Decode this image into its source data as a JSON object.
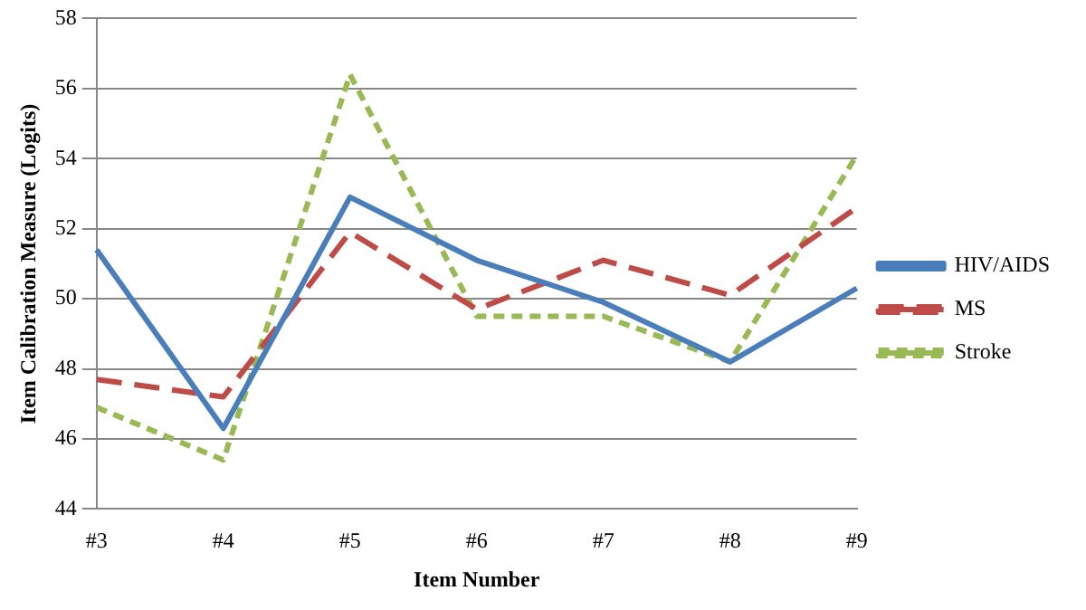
{
  "chart_data": {
    "type": "line",
    "xlabel": "Item Number",
    "ylabel": "Item Calibration Measure (Logits)",
    "categories": [
      "#3",
      "#4",
      "#5",
      "#6",
      "#7",
      "#8",
      "#9"
    ],
    "series": [
      {
        "name": "HIV/AIDS",
        "color": "#4a7ebb",
        "line_style": "solid",
        "values": [
          51.4,
          46.3,
          52.9,
          51.1,
          49.9,
          48.2,
          50.3
        ]
      },
      {
        "name": "MS",
        "color": "#be4b48",
        "line_style": "dashed",
        "values": [
          47.7,
          47.2,
          51.9,
          49.7,
          51.1,
          50.1,
          52.6
        ]
      },
      {
        "name": "Stroke",
        "color": "#98b954",
        "line_style": "dotted",
        "values": [
          46.9,
          45.4,
          56.4,
          49.5,
          49.5,
          48.2,
          54.1
        ]
      }
    ],
    "ylim": [
      44,
      58
    ],
    "yticks": [
      44,
      46,
      48,
      50,
      52,
      54,
      56,
      58
    ],
    "grid": "y",
    "legend": "right",
    "marker": "none"
  }
}
